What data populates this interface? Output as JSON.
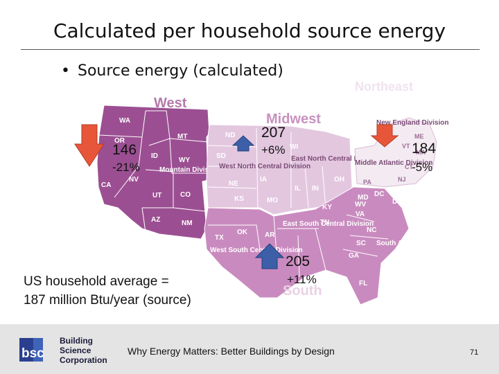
{
  "slide": {
    "title": "Calculated per household source energy",
    "bullet": "Source energy (calculated)"
  },
  "regions": {
    "west": "West",
    "midwest": "Midwest",
    "northeast": "Northeast",
    "south": "South"
  },
  "divisions": {
    "mountain": "Mountain Division",
    "west_north_central": "West North Central Division",
    "east_north_central": "East North Central Division",
    "new_england": "New England Division",
    "middle_atlantic": "Middle Atlantic Division",
    "east_south_central": "East South Central Division",
    "west_south_central": "West South Central Division",
    "south_atlantic": "South Atlantic Division"
  },
  "stats": {
    "west": {
      "value": "146",
      "change": "-21%",
      "direction": "down"
    },
    "midwest": {
      "value": "207",
      "change": "+6%",
      "direction": "up"
    },
    "northeast": {
      "value": "184",
      "change": "-5%",
      "direction": "down"
    },
    "south": {
      "value": "205",
      "change": "+11%",
      "direction": "up"
    }
  },
  "average_line1": "US household average =",
  "average_line2": "187 million Btu/year (source)",
  "footer": {
    "text": "Why Energy Matters: Better Buildings by Design",
    "page_number": "71",
    "logo_abbr": "bsc",
    "logo_line1": "Building",
    "logo_line2": "Science",
    "logo_line3": "Corporation"
  },
  "colors": {
    "west": "#9b4f92",
    "midwest": "#e3c7df",
    "northeast": "#f4eaf2",
    "south": "#c98bbf",
    "down_arrow": "#e8563a",
    "up_arrow": "#3c5fa8"
  }
}
